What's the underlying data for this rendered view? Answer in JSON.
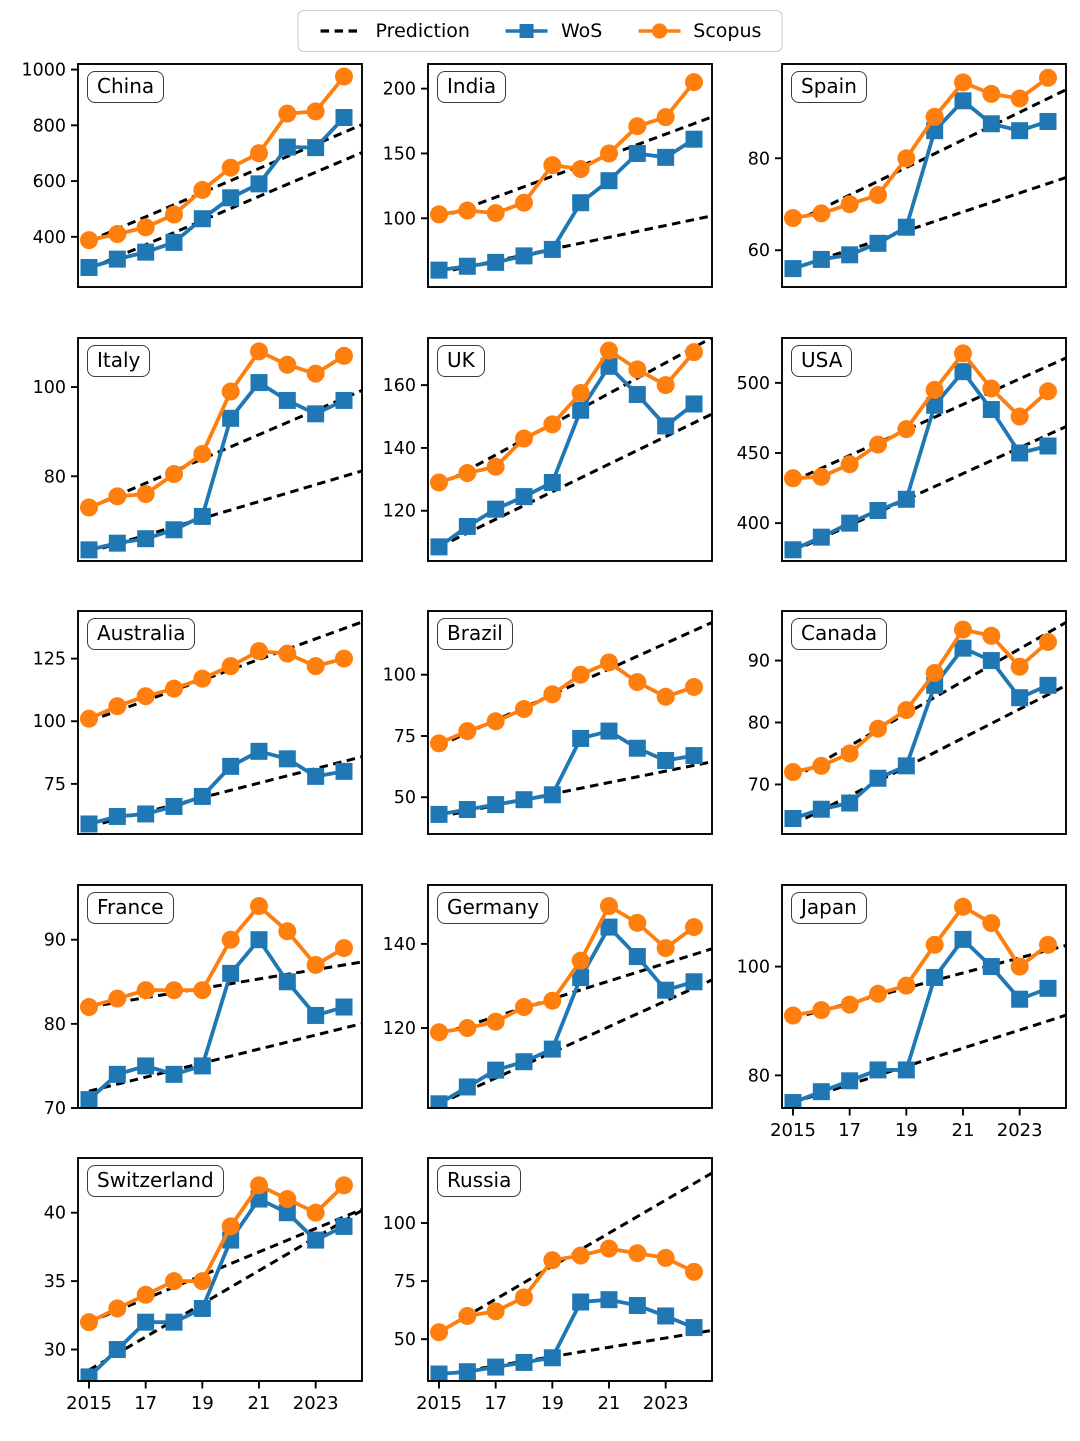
{
  "figure": {
    "background": "#ffffff",
    "colors": {
      "prediction": "#000000",
      "wos": "#1f77b4",
      "scopus": "#ff7f0e"
    },
    "legend": {
      "items": [
        {
          "label": "Prediction",
          "series": "prediction"
        },
        {
          "label": "WoS",
          "series": "wos"
        },
        {
          "label": "Scopus",
          "series": "scopus"
        }
      ]
    }
  },
  "chart_data": {
    "type": "line",
    "x": [
      2015,
      2016,
      2017,
      2018,
      2019,
      2020,
      2021,
      2022,
      2023,
      2024
    ],
    "x_axis": {
      "tick_positions": [
        2015,
        2017,
        2019,
        2021,
        2023
      ],
      "tick_labels": [
        "2015",
        "17",
        "19",
        "21",
        "2023"
      ]
    },
    "series_legend": [
      "Prediction",
      "WoS",
      "Scopus"
    ],
    "note": "pred_wos and pred_scopus are dashed linear prediction lines given as [value_2015, value_2024]",
    "plots": [
      {
        "title": "China",
        "ylim": [
          220,
          1020
        ],
        "yticks": [
          400,
          600,
          800,
          1000
        ],
        "wos": [
          290,
          320,
          345,
          380,
          465,
          540,
          590,
          722,
          720,
          828
        ],
        "scopus": [
          388,
          410,
          434,
          480,
          568,
          648,
          700,
          842,
          850,
          975
        ],
        "pred_wos": [
          285,
          675
        ],
        "pred_scopus": [
          385,
          775
        ],
        "show_xtick_labels": false
      },
      {
        "title": "India",
        "ylim": [
          47,
          219
        ],
        "yticks": [
          100,
          150,
          200
        ],
        "wos": [
          60,
          63,
          66,
          71,
          76,
          112,
          129,
          150,
          147,
          161
        ],
        "scopus": [
          103,
          106,
          104,
          112,
          141,
          138,
          150,
          171,
          178,
          205
        ],
        "pred_wos": [
          58,
          99
        ],
        "pred_scopus": [
          100,
          173
        ],
        "show_xtick_labels": false
      },
      {
        "title": "Spain",
        "ylim": [
          52,
          100.5
        ],
        "yticks": [
          60,
          80
        ],
        "wos": [
          56,
          58,
          59,
          61.5,
          65,
          86,
          92.5,
          87.5,
          86,
          88
        ],
        "scopus": [
          67,
          68,
          70,
          72,
          80,
          89,
          96.5,
          94,
          93,
          97.5
        ],
        "pred_wos": [
          56,
          74.5
        ],
        "pred_scopus": [
          66,
          93
        ],
        "show_xtick_labels": false
      },
      {
        "title": "Italy",
        "ylim": [
          61,
          111
        ],
        "yticks": [
          80,
          100
        ],
        "wos": [
          63.5,
          65,
          66,
          68,
          71,
          93,
          101,
          97,
          94,
          97
        ],
        "scopus": [
          73,
          75.5,
          76,
          80.5,
          85,
          99,
          108,
          105,
          103,
          107
        ],
        "pred_wos": [
          63,
          80
        ],
        "pred_scopus": [
          73,
          97.5
        ],
        "show_xtick_labels": false
      },
      {
        "title": "UK",
        "ylim": [
          104,
          175
        ],
        "yticks": [
          120,
          140,
          160
        ],
        "wos": [
          108.5,
          115,
          120.5,
          124.5,
          129,
          152,
          166,
          157,
          147,
          154
        ],
        "scopus": [
          129,
          132,
          134,
          143,
          147.5,
          157.5,
          171,
          165,
          160,
          170.5
        ],
        "pred_wos": [
          108.5,
          148
        ],
        "pred_scopus": [
          128,
          172
        ],
        "show_xtick_labels": false
      },
      {
        "title": "USA",
        "ylim": [
          373,
          532
        ],
        "yticks": [
          400,
          450,
          500
        ],
        "wos": [
          381,
          390,
          400,
          409,
          417,
          484,
          508,
          481,
          450,
          455
        ],
        "scopus": [
          432,
          433,
          442,
          456,
          467,
          495,
          521,
          496,
          476,
          494
        ],
        "pred_wos": [
          380,
          463
        ],
        "pred_scopus": [
          430,
          512
        ],
        "show_xtick_labels": false
      },
      {
        "title": "Australia",
        "ylim": [
          55,
          144
        ],
        "yticks": [
          75,
          100,
          125
        ],
        "wos": [
          59,
          62,
          63,
          66,
          70,
          82,
          88,
          85,
          78,
          80
        ],
        "scopus": [
          101,
          106,
          110,
          113,
          117,
          122,
          128,
          127,
          122,
          125
        ],
        "pred_wos": [
          58,
          84
        ],
        "pred_scopus": [
          100,
          137
        ],
        "show_xtick_labels": false
      },
      {
        "title": "Brazil",
        "ylim": [
          35,
          126
        ],
        "yticks": [
          50,
          75,
          100
        ],
        "wos": [
          43,
          45,
          47,
          49,
          51,
          74,
          77,
          70,
          65,
          67
        ],
        "scopus": [
          72,
          77,
          81,
          86,
          92,
          100,
          105,
          97,
          91,
          95
        ],
        "pred_wos": [
          42,
          63
        ],
        "pred_scopus": [
          71,
          118
        ],
        "show_xtick_labels": false
      },
      {
        "title": "Canada",
        "ylim": [
          62,
          98
        ],
        "yticks": [
          70,
          80,
          90
        ],
        "wos": [
          64.5,
          66,
          67,
          71,
          73,
          86,
          92,
          90,
          84,
          86
        ],
        "scopus": [
          72,
          73,
          75,
          79,
          82,
          88,
          95,
          94,
          89,
          93
        ],
        "pred_wos": [
          63.5,
          84.5
        ],
        "pred_scopus": [
          71,
          94.5
        ],
        "show_xtick_labels": false
      },
      {
        "title": "France",
        "ylim": [
          70,
          96.5
        ],
        "yticks": [
          70,
          80,
          90
        ],
        "wos": [
          71,
          74,
          75,
          74,
          75,
          86,
          90,
          85,
          81,
          82
        ],
        "scopus": [
          82,
          83,
          84,
          84,
          84,
          90,
          94,
          91,
          87,
          89
        ],
        "pred_wos": [
          72,
          79.5
        ],
        "pred_scopus": [
          82,
          87
        ],
        "show_xtick_labels": false
      },
      {
        "title": "Germany",
        "ylim": [
          101,
          154
        ],
        "yticks": [
          120,
          140
        ],
        "wos": [
          102,
          106,
          110,
          112,
          115,
          132,
          144,
          137,
          129,
          131
        ],
        "scopus": [
          119,
          120,
          121.5,
          125,
          126.5,
          136,
          149,
          145,
          139,
          144
        ],
        "pred_wos": [
          102,
          129.5
        ],
        "pred_scopus": [
          118.5,
          137.5
        ],
        "show_xtick_labels": false
      },
      {
        "title": "Japan",
        "ylim": [
          74,
          115
        ],
        "yticks": [
          80,
          100
        ],
        "wos": [
          75,
          77,
          79,
          81,
          81,
          98,
          105,
          100,
          94,
          96
        ],
        "scopus": [
          91,
          92,
          93,
          95,
          96.5,
          104,
          111,
          108,
          100,
          104
        ],
        "pred_wos": [
          75,
          90
        ],
        "pred_scopus": [
          90.5,
          103
        ],
        "show_xtick_labels": true
      },
      {
        "title": "Switzerland",
        "ylim": [
          27.7,
          44
        ],
        "yticks": [
          30,
          35,
          40
        ],
        "wos": [
          28,
          30,
          32,
          32,
          33,
          38,
          41,
          40,
          38,
          39
        ],
        "scopus": [
          32,
          33,
          34,
          35,
          35,
          39,
          42,
          41,
          40,
          42
        ],
        "pred_wos": [
          28.5,
          39.4
        ],
        "pred_scopus": [
          32,
          39.7
        ],
        "show_xtick_labels": true
      },
      {
        "title": "Russia",
        "ylim": [
          32,
          128
        ],
        "yticks": [
          50,
          75,
          100
        ],
        "wos": [
          35,
          36,
          38,
          40,
          42,
          66,
          67,
          64.5,
          60,
          55
        ],
        "scopus": [
          53,
          60,
          62,
          68,
          84,
          86,
          89,
          87,
          85,
          79
        ],
        "pred_wos": [
          34.5,
          52.5
        ],
        "pred_scopus": [
          53,
          117
        ],
        "show_xtick_labels": true
      }
    ]
  }
}
